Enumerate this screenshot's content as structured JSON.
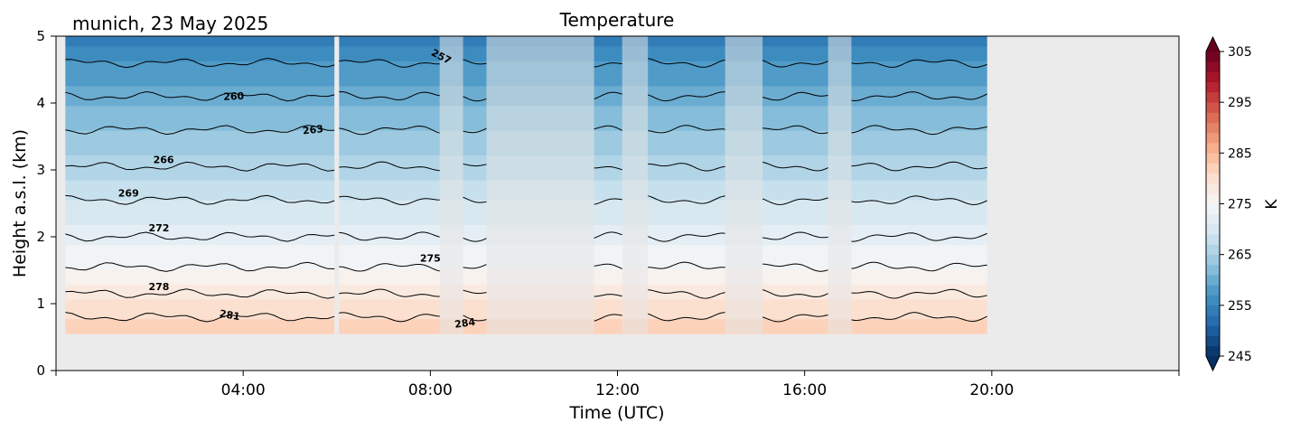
{
  "chart_data": {
    "type": "heatmap",
    "title": "Temperature",
    "subtitle": "munich, 23 May 2025",
    "xlabel": "Time (UTC)",
    "ylabel": "Height a.s.l. (km)",
    "xlim_hours": [
      0,
      24
    ],
    "ylim_km": [
      0,
      5
    ],
    "x_ticks": [
      {
        "hour": 4,
        "label": "04:00"
      },
      {
        "hour": 8,
        "label": "08:00"
      },
      {
        "hour": 12,
        "label": "12:00"
      },
      {
        "hour": 16,
        "label": "16:00"
      },
      {
        "hour": 20,
        "label": "20:00"
      }
    ],
    "x_minor_ticks_hours": [
      0,
      24
    ],
    "y_ticks": [
      "0",
      "1",
      "2",
      "3",
      "4",
      "5"
    ],
    "data_extent": {
      "start_hour": 0.2,
      "end_hour": 19.9,
      "bottom_km": 0.55,
      "top_km": 5.0
    },
    "profile_temperature_K": [
      {
        "height_km": 0.55,
        "temp_K": 282.5
      },
      {
        "height_km": 0.8,
        "temp_K": 281
      },
      {
        "height_km": 1.15,
        "temp_K": 278
      },
      {
        "height_km": 1.55,
        "temp_K": 275
      },
      {
        "height_km": 2.0,
        "temp_K": 272
      },
      {
        "height_km": 2.55,
        "temp_K": 269
      },
      {
        "height_km": 3.05,
        "temp_K": 266
      },
      {
        "height_km": 3.6,
        "temp_K": 263
      },
      {
        "height_km": 4.1,
        "temp_K": 260
      },
      {
        "height_km": 4.6,
        "temp_K": 257
      },
      {
        "height_km": 5.0,
        "temp_K": 254
      }
    ],
    "faded_periods_hours": [
      [
        8.2,
        8.7
      ],
      [
        9.2,
        11.5
      ],
      [
        12.1,
        12.65
      ],
      [
        14.3,
        15.1
      ],
      [
        16.5,
        17.0
      ]
    ],
    "gap_periods_hours": [
      [
        5.95,
        6.05
      ]
    ],
    "contour_levels_K": [
      257,
      260,
      263,
      266,
      269,
      272,
      275,
      278,
      281,
      284
    ],
    "contour_labels": [
      {
        "text": "257",
        "hour": 8.2,
        "height_km": 4.65,
        "rotation": 28
      },
      {
        "text": "260",
        "hour": 3.8,
        "height_km": 4.05,
        "rotation": -2
      },
      {
        "text": "263",
        "hour": 5.5,
        "height_km": 3.55,
        "rotation": -6
      },
      {
        "text": "266",
        "hour": 2.3,
        "height_km": 3.1,
        "rotation": 0
      },
      {
        "text": "269",
        "hour": 1.55,
        "height_km": 2.6,
        "rotation": 0
      },
      {
        "text": "272",
        "hour": 2.2,
        "height_km": 2.08,
        "rotation": 0
      },
      {
        "text": "275",
        "hour": 8.0,
        "height_km": 1.63,
        "rotation": 0
      },
      {
        "text": "278",
        "hour": 2.2,
        "height_km": 1.2,
        "rotation": 0
      },
      {
        "text": "281",
        "hour": 3.7,
        "height_km": 0.78,
        "rotation": 10
      },
      {
        "text": "284",
        "hour": 8.75,
        "height_km": 0.66,
        "rotation": -8
      }
    ],
    "colorbar": {
      "label": "K",
      "min_K": 245,
      "max_K": 305,
      "step_K": 2,
      "ticks": [
        "245",
        "255",
        "265",
        "275",
        "285",
        "295",
        "305"
      ],
      "colormap": "RdBu_r",
      "extend": "both"
    },
    "colors": {
      "axes_background": "#ebebeb",
      "contour_line": "#000000"
    }
  }
}
